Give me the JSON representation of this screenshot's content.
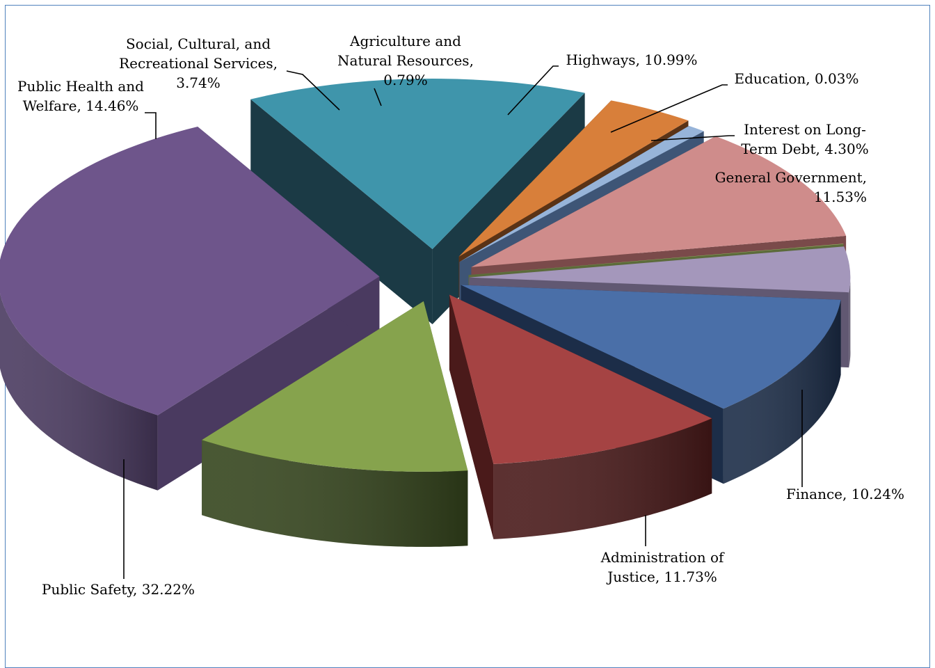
{
  "chart_data": {
    "type": "pie",
    "title": "",
    "slices": [
      {
        "name": "General Government",
        "value": 11.53,
        "label_lines": [
          "General Government,",
          "11.53%"
        ],
        "color": "#4a6fa8",
        "side": "#1c2d48"
      },
      {
        "name": "Finance",
        "value": 10.24,
        "label_lines": [
          "Finance, 10.24%"
        ],
        "color": "#a54343",
        "side": "#4a1a1a"
      },
      {
        "name": "Administration of Justice",
        "value": 11.73,
        "label_lines": [
          "Administration of",
          "Justice, 11.73%"
        ],
        "color": "#86a34d",
        "side": "#35451d"
      },
      {
        "name": "Public Safety",
        "value": 32.22,
        "label_lines": [
          "Public Safety, 32.22%"
        ],
        "color": "#6e558b",
        "side": "#4a3a60"
      },
      {
        "name": "Public Health and Welfare",
        "value": 14.46,
        "label_lines": [
          "Public Health and",
          "Welfare, 14.46%"
        ],
        "color": "#3f95ab",
        "side": "#1b3a45"
      },
      {
        "name": "Social, Cultural, and Recreational Services",
        "value": 3.74,
        "label_lines": [
          "Social, Cultural, and",
          "Recreational Services,",
          "3.74%"
        ],
        "color": "#d87f3a",
        "side": "#5a3316"
      },
      {
        "name": "Agriculture and Natural Resources",
        "value": 0.79,
        "label_lines": [
          "Agriculture and",
          "Natural Resources,",
          "0.79%"
        ],
        "color": "#97b4d9",
        "side": "#3e5576"
      },
      {
        "name": "Highways",
        "value": 10.99,
        "label_lines": [
          "Highways, 10.99%"
        ],
        "color": "#cf8c8b",
        "side": "#7a4a4a"
      },
      {
        "name": "Education",
        "value": 0.03,
        "label_lines": [
          "Education, 0.03%"
        ],
        "color": "#a5be6f",
        "side": "#5c6b3a"
      },
      {
        "name": "Interest on Long-Term Debt",
        "value": 4.3,
        "label_lines": [
          "Interest on Long-",
          "Term Debt, 4.30%"
        ],
        "color": "#a497bb",
        "side": "#615872"
      }
    ]
  }
}
